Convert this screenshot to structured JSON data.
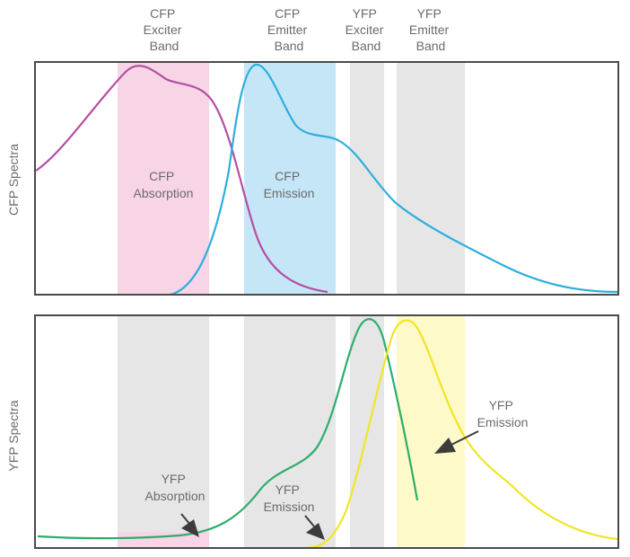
{
  "band_labels": [
    {
      "id": "cfp-exciter",
      "lines": [
        "CFP",
        "Exciter",
        "Band"
      ]
    },
    {
      "id": "cfp-emitter",
      "lines": [
        "CFP",
        "Emitter",
        "Band"
      ]
    },
    {
      "id": "yfp-exciter",
      "lines": [
        "YFP",
        "Exciter",
        "Band"
      ]
    },
    {
      "id": "yfp-emitter",
      "lines": [
        "YFP",
        "Emitter",
        "Band"
      ]
    }
  ],
  "top_panel": {
    "ylabel": "CFP Spectra",
    "labels": {
      "absorption": [
        "CFP",
        "Absorption"
      ],
      "emission": [
        "CFP",
        "Emission"
      ]
    }
  },
  "bottom_panel": {
    "ylabel": "YFP Spectra",
    "labels": {
      "absorption": [
        "YFP",
        "Absorption"
      ],
      "emission_left": [
        "YFP",
        "Emission"
      ],
      "emission_right": [
        "YFP",
        "Emission"
      ]
    }
  },
  "colors": {
    "frame": "#4a4a4a",
    "band_gray": "#e6e6e6",
    "cfp_absorption_fill": "#f7d5e6",
    "cfp_emission_fill": "#c5e6f7",
    "yfp_absorption_fill": "#f7d5e6",
    "yfp_emission_fill": "#fdf9c9",
    "cfp_absorption_curve": "#b44fa3",
    "cfp_emission_curve": "#2eaede",
    "yfp_absorption_curve": "#2ead6b",
    "yfp_emission_curve": "#f0e622",
    "arrow": "#3c3c3c",
    "label_text": "#6b6b6b"
  }
}
